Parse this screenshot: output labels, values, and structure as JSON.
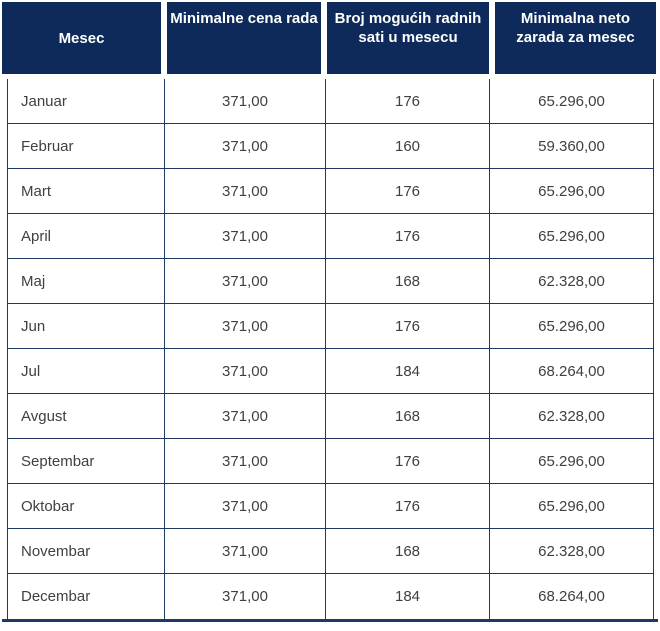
{
  "colors": {
    "header_bg": "#0d2a5a",
    "border": "#1f3864",
    "header_text": "#ffffff",
    "body_text": "#404040",
    "page_bg": "#ffffff"
  },
  "table": {
    "columns": [
      {
        "key": "mesec",
        "label": "Mesec"
      },
      {
        "key": "minimalna_cena_rada",
        "label": "Minimalne cena rada"
      },
      {
        "key": "broj_radnih_sati",
        "label": "Broj mogućih radnih sati u mesecu"
      },
      {
        "key": "minimalna_neto_zarada",
        "label": "Minimalna neto zarada za mesec"
      }
    ],
    "rows": [
      {
        "mesec": "Januar",
        "minimalna_cena_rada": "371,00",
        "broj_radnih_sati": "176",
        "minimalna_neto_zarada": "65.296,00"
      },
      {
        "mesec": "Februar",
        "minimalna_cena_rada": "371,00",
        "broj_radnih_sati": "160",
        "minimalna_neto_zarada": "59.360,00"
      },
      {
        "mesec": "Mart",
        "minimalna_cena_rada": "371,00",
        "broj_radnih_sati": "176",
        "minimalna_neto_zarada": "65.296,00"
      },
      {
        "mesec": "April",
        "minimalna_cena_rada": "371,00",
        "broj_radnih_sati": "176",
        "minimalna_neto_zarada": "65.296,00"
      },
      {
        "mesec": "Maj",
        "minimalna_cena_rada": "371,00",
        "broj_radnih_sati": "168",
        "minimalna_neto_zarada": "62.328,00"
      },
      {
        "mesec": "Jun",
        "minimalna_cena_rada": "371,00",
        "broj_radnih_sati": "176",
        "minimalna_neto_zarada": "65.296,00"
      },
      {
        "mesec": "Jul",
        "minimalna_cena_rada": "371,00",
        "broj_radnih_sati": "184",
        "minimalna_neto_zarada": "68.264,00"
      },
      {
        "mesec": "Avgust",
        "minimalna_cena_rada": "371,00",
        "broj_radnih_sati": "168",
        "minimalna_neto_zarada": "62.328,00"
      },
      {
        "mesec": "Septembar",
        "minimalna_cena_rada": "371,00",
        "broj_radnih_sati": "176",
        "minimalna_neto_zarada": "65.296,00"
      },
      {
        "mesec": "Oktobar",
        "minimalna_cena_rada": "371,00",
        "broj_radnih_sati": "176",
        "minimalna_neto_zarada": "65.296,00"
      },
      {
        "mesec": "Novembar",
        "minimalna_cena_rada": "371,00",
        "broj_radnih_sati": "168",
        "minimalna_neto_zarada": "62.328,00"
      },
      {
        "mesec": "Decembar",
        "minimalna_cena_rada": "371,00",
        "broj_radnih_sati": "184",
        "minimalna_neto_zarada": "68.264,00"
      }
    ]
  }
}
